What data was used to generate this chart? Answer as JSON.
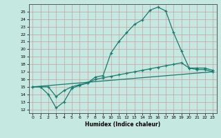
{
  "xlabel": "Humidex (Indice chaleur)",
  "xlim": [
    -0.5,
    23.5
  ],
  "ylim": [
    11.5,
    26.0
  ],
  "yticks": [
    12,
    13,
    14,
    15,
    16,
    17,
    18,
    19,
    20,
    21,
    22,
    23,
    24,
    25
  ],
  "xticks": [
    0,
    1,
    2,
    3,
    4,
    5,
    6,
    7,
    8,
    9,
    10,
    11,
    12,
    13,
    14,
    15,
    16,
    17,
    18,
    19,
    20,
    21,
    22,
    23
  ],
  "background_color": "#c5e8e0",
  "grid_color": "#b0cec8",
  "line_color": "#1a7a6e",
  "line1_x": [
    0,
    1,
    2,
    3,
    4,
    5,
    6,
    7,
    8,
    9,
    10,
    11,
    12,
    13,
    14,
    15,
    16,
    17,
    18,
    19,
    20,
    21,
    22,
    23
  ],
  "line1_y": [
    15.0,
    15.0,
    15.0,
    13.7,
    14.5,
    15.0,
    15.3,
    15.5,
    16.3,
    16.5,
    19.5,
    21.0,
    22.2,
    23.3,
    23.9,
    25.2,
    25.6,
    25.1,
    22.2,
    19.8,
    17.5,
    17.5,
    17.5,
    17.2
  ],
  "line2_x": [
    0,
    1,
    2,
    3,
    4,
    5,
    6,
    7,
    8,
    9,
    10,
    11,
    12,
    13,
    14,
    15,
    16,
    17,
    18,
    19,
    20,
    21,
    22,
    23
  ],
  "line2_y": [
    15.0,
    15.0,
    14.0,
    12.2,
    13.0,
    14.8,
    15.2,
    15.5,
    16.0,
    16.2,
    16.4,
    16.6,
    16.8,
    17.0,
    17.2,
    17.4,
    17.6,
    17.8,
    18.0,
    18.2,
    17.5,
    17.3,
    17.3,
    17.0
  ],
  "line3_x": [
    0,
    23
  ],
  "line3_y": [
    15.0,
    17.0
  ]
}
